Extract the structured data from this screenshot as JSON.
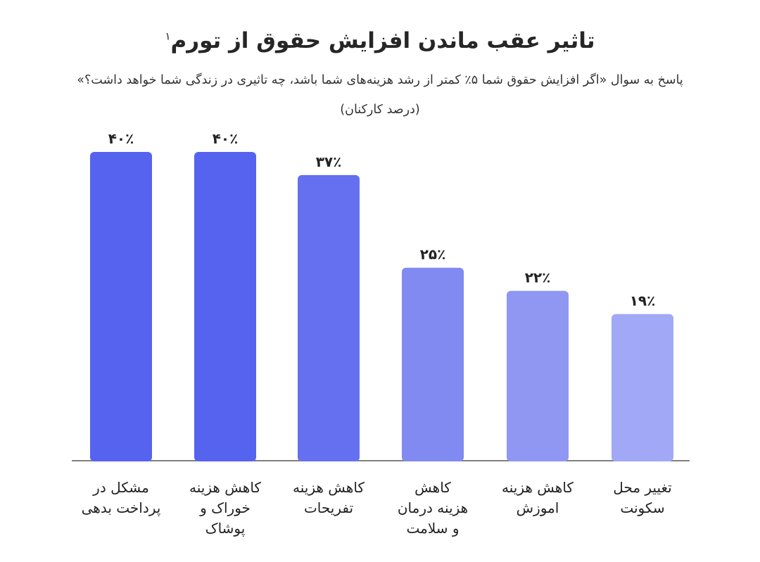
{
  "chart_data": {
    "type": "bar",
    "title": "تاثیر عقب ماندن افزایش حقوق از تورم",
    "title_footnote": "۱",
    "subtitle": "پاسخ به سوال «اگر افزایش حقوق شما ۵٪ کمتر از رشد هزینه‌های شما باشد، چه تاثیری در زندگی شما خواهد داشت؟»",
    "subtitle2": "(درصد کارکنان)",
    "categories": [
      [
        "مشکل در",
        "پرداخت بدهی"
      ],
      [
        "کاهش هزینه",
        "خوراک و",
        "پوشاک"
      ],
      [
        "کاهش هزینه",
        "تفریحات"
      ],
      [
        "کاهش",
        "هزینه درمان",
        "و سلامت"
      ],
      [
        "کاهش هزینه",
        "اموزش"
      ],
      [
        "تغییر محل",
        "سکونت"
      ]
    ],
    "values": [
      40,
      40,
      37,
      25,
      22,
      19
    ],
    "value_labels": [
      "۴۰٪",
      "۴۰٪",
      "۳۷٪",
      "۲۵٪",
      "۲۲٪",
      "۱۹٪"
    ],
    "colors": [
      "#5563ee",
      "#5563ee",
      "#6470f0",
      "#808af1",
      "#8f97f3",
      "#a1a8f5"
    ],
    "ylim": [
      0,
      40
    ],
    "xlabel": "",
    "ylabel": "",
    "grid": false,
    "legend": "none"
  }
}
